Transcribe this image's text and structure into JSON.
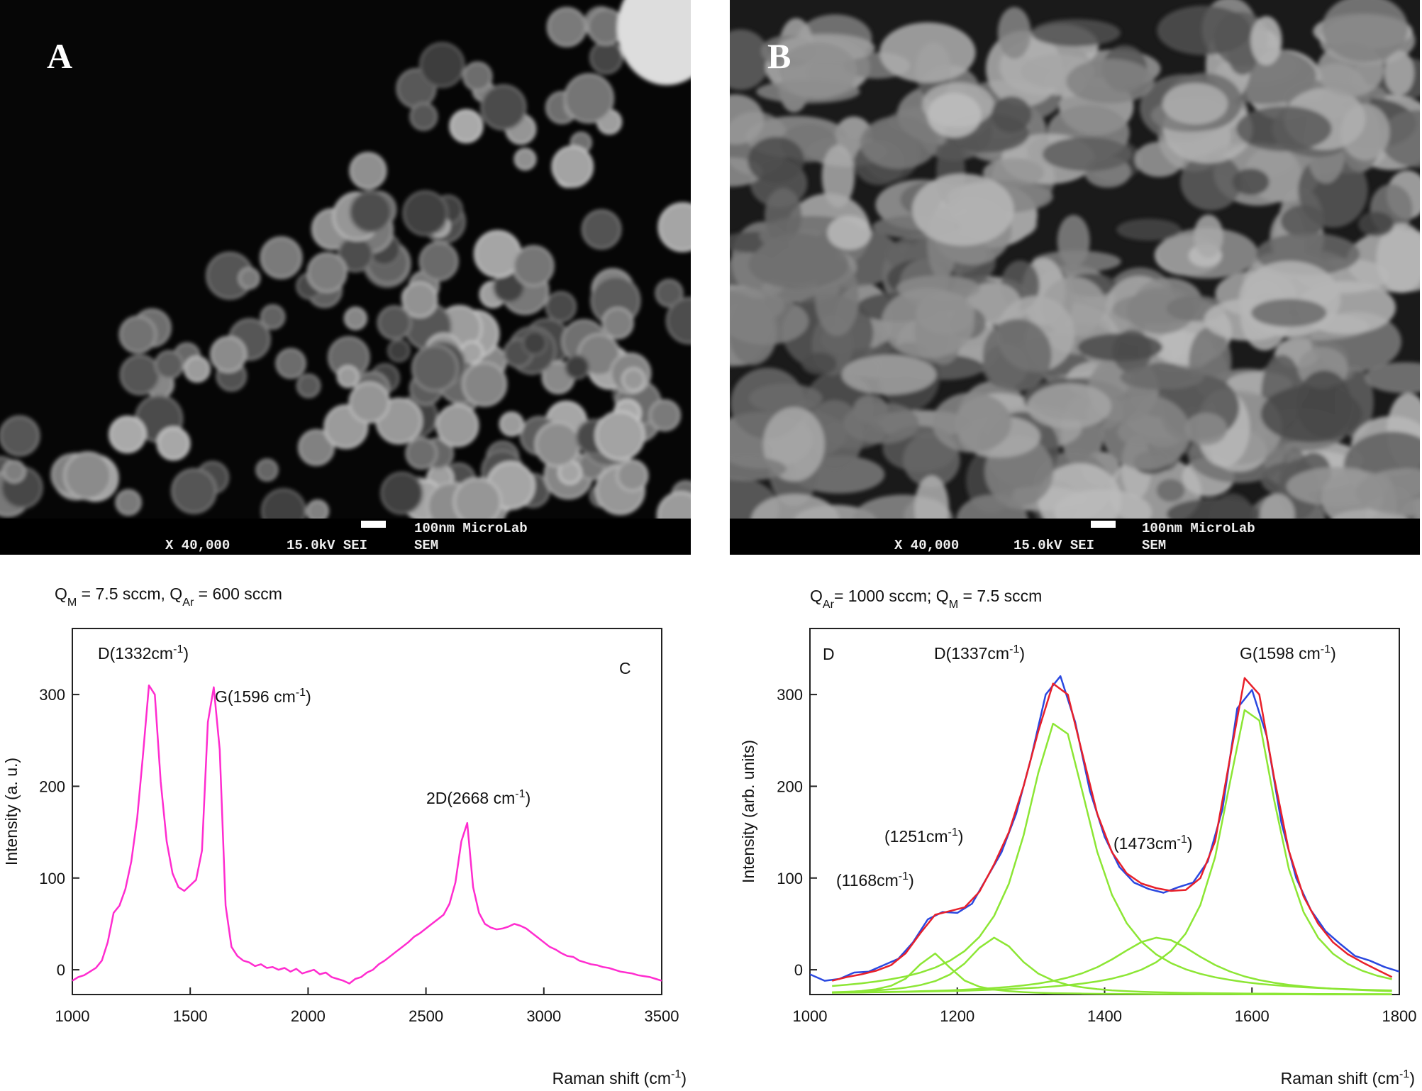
{
  "images": [
    {
      "label": "A",
      "magnification": "X 40,000",
      "voltage": "15.0kV SEI",
      "scale": "100nm MicroLab",
      "instrument": "SEM"
    },
    {
      "label": "B",
      "magnification": "X 40,000",
      "voltage": "15.0kV SEI",
      "scale": "100nm MicroLab",
      "instrument": "SEM"
    }
  ],
  "chart_data": [
    {
      "type": "line",
      "panel": "C",
      "title": [
        {
          "text": "Q"
        },
        {
          "text": "M",
          "sub": true
        },
        {
          "text": " = 7.5 sccm, Q"
        },
        {
          "text": "Ar",
          "sub": true
        },
        {
          "text": " = 600 sccm"
        }
      ],
      "ylabel": [
        {
          "text": "Intensity (a. u.)"
        }
      ],
      "xlabel": [
        {
          "text": "Raman shift (cm"
        },
        {
          "text": "-1",
          "sup": true
        },
        {
          "text": ")"
        }
      ],
      "annotations": [
        [
          {
            "text": "D(1332cm"
          },
          {
            "text": "-1",
            "sup": true
          },
          {
            "text": ")"
          }
        ],
        [
          {
            "text": "G(1596 cm"
          },
          {
            "text": "-1",
            "sup": true
          },
          {
            "text": ")"
          }
        ],
        [
          {
            "text": "2D(2668 cm"
          },
          {
            "text": "-1",
            "sup": true
          },
          {
            "text": ")"
          }
        ]
      ],
      "xlim": [
        1000,
        3500
      ],
      "ylim": [
        -27,
        372
      ],
      "xticks": [
        1000,
        1500,
        2000,
        2500,
        3000,
        3500
      ],
      "yticks": [
        0,
        100,
        200,
        300
      ],
      "series": [
        {
          "color": "#ff2ccf",
          "x": [
            1000,
            1025,
            1050,
            1075,
            1100,
            1125,
            1150,
            1175,
            1200,
            1225,
            1250,
            1275,
            1300,
            1325,
            1350,
            1375,
            1400,
            1425,
            1450,
            1475,
            1500,
            1525,
            1550,
            1575,
            1600,
            1625,
            1650,
            1675,
            1700,
            1725,
            1750,
            1775,
            1800,
            1825,
            1850,
            1875,
            1900,
            1925,
            1950,
            1975,
            2000,
            2025,
            2050,
            2075,
            2100,
            2125,
            2150,
            2175,
            2200,
            2225,
            2250,
            2275,
            2300,
            2325,
            2350,
            2375,
            2400,
            2425,
            2450,
            2475,
            2500,
            2525,
            2550,
            2575,
            2600,
            2625,
            2650,
            2675,
            2700,
            2725,
            2750,
            2775,
            2800,
            2825,
            2850,
            2875,
            2900,
            2925,
            2950,
            2975,
            3000,
            3025,
            3050,
            3075,
            3100,
            3125,
            3150,
            3175,
            3200,
            3225,
            3250,
            3275,
            3300,
            3325,
            3350,
            3375,
            3400,
            3425,
            3450,
            3475,
            3500
          ],
          "values": [
            -12,
            -8,
            -6,
            -2,
            2,
            10,
            30,
            62,
            70,
            88,
            118,
            165,
            235,
            310,
            300,
            205,
            140,
            105,
            90,
            86,
            92,
            98,
            130,
            270,
            308,
            240,
            70,
            25,
            15,
            10,
            8,
            4,
            6,
            2,
            3,
            0,
            2,
            -2,
            1,
            -4,
            -2,
            0,
            -5,
            -3,
            -8,
            -10,
            -12,
            -15,
            -10,
            -8,
            -3,
            0,
            6,
            10,
            15,
            20,
            25,
            30,
            36,
            40,
            45,
            50,
            55,
            60,
            72,
            95,
            140,
            160,
            90,
            62,
            50,
            46,
            44,
            45,
            47,
            50,
            48,
            45,
            40,
            35,
            30,
            25,
            22,
            18,
            15,
            14,
            10,
            8,
            6,
            5,
            3,
            2,
            0,
            -2,
            -3,
            -4,
            -6,
            -7,
            -8,
            -10,
            -12
          ]
        }
      ]
    },
    {
      "type": "line",
      "panel": "D",
      "title": [
        {
          "text": "Q"
        },
        {
          "text": "Ar",
          "sub": true
        },
        {
          "text": "= 1000 sccm; Q"
        },
        {
          "text": "M",
          "sub": true
        },
        {
          "text": " = 7.5 sccm"
        }
      ],
      "ylabel": [
        {
          "text": "Intensity (arb. units)"
        }
      ],
      "xlabel": [
        {
          "text": "Raman shift (cm"
        },
        {
          "text": "-1",
          "sup": true
        },
        {
          "text": ")"
        }
      ],
      "annotations": [
        [
          {
            "text": "D(1337cm"
          },
          {
            "text": "-1",
            "sup": true
          },
          {
            "text": ")"
          }
        ],
        [
          {
            "text": "G(1598 cm"
          },
          {
            "text": "-1",
            "sup": true
          },
          {
            "text": ")"
          }
        ],
        [
          {
            "text": "(1251cm"
          },
          {
            "text": "-1",
            "sup": true
          },
          {
            "text": ")"
          }
        ],
        [
          {
            "text": "(1473cm"
          },
          {
            "text": "-1",
            "sup": true
          },
          {
            "text": ")"
          }
        ],
        [
          {
            "text": "(1168cm"
          },
          {
            "text": "-1",
            "sup": true
          },
          {
            "text": ")"
          }
        ]
      ],
      "xlim": [
        1000,
        1800
      ],
      "ylim": [
        -27,
        372
      ],
      "xticks": [
        1000,
        1200,
        1400,
        1600,
        1800
      ],
      "yticks": [
        0,
        100,
        200,
        300
      ],
      "series": [
        {
          "color": "#8ce634",
          "x": [
            1030,
            1050,
            1070,
            1090,
            1110,
            1130,
            1150,
            1170,
            1190,
            1210,
            1230,
            1250,
            1270,
            1290,
            1310,
            1330,
            1350,
            1370,
            1390,
            1410,
            1430,
            1450,
            1470,
            1490,
            1510,
            1530,
            1550,
            1570,
            1590,
            1610,
            1630,
            1650,
            1670,
            1690,
            1710,
            1730,
            1750,
            1770,
            1790
          ],
          "values": [
            -25.0,
            -24.3,
            -23.1,
            -21.2,
            -17.5,
            -9.7,
            6.1,
            17.8,
            2.3,
            -11.8,
            -18.5,
            -21.7,
            -23.4,
            -24.4,
            -25.1,
            -25.5,
            -25.8,
            -26.0,
            -26.2,
            -26.3,
            -26.4,
            -26.5,
            -26.6,
            -26.6,
            -26.6,
            -26.7,
            -26.7,
            -26.7,
            -26.8,
            -26.8,
            -26.8,
            -26.8,
            -26.8,
            -26.9,
            -26.9,
            -26.9,
            -26.9,
            -26.9,
            -26.9
          ]
        },
        {
          "color": "#8ce634",
          "x": [
            1030,
            1050,
            1070,
            1090,
            1110,
            1130,
            1150,
            1170,
            1190,
            1210,
            1230,
            1250,
            1270,
            1290,
            1310,
            1330,
            1350,
            1370,
            1390,
            1410,
            1430,
            1450,
            1470,
            1490,
            1510,
            1530,
            1550,
            1570,
            1590,
            1610,
            1630,
            1650,
            1670,
            1690,
            1710,
            1730,
            1750,
            1770,
            1790
          ],
          "values": [
            -24.5,
            -24.0,
            -23.4,
            -22.5,
            -21.3,
            -19.5,
            -16.7,
            -12.4,
            -5.2,
            6.9,
            23.9,
            35.0,
            25.6,
            8.4,
            -4.2,
            -11.8,
            -16.4,
            -19.2,
            -21.1,
            -22.4,
            -23.3,
            -24.0,
            -24.5,
            -24.9,
            -25.2,
            -25.4,
            -25.6,
            -25.8,
            -25.9,
            -26.0,
            -26.1,
            -26.2,
            -26.3,
            -26.4,
            -26.4,
            -26.5,
            -26.5,
            -26.5,
            -26.6
          ]
        },
        {
          "color": "#8ce634",
          "x": [
            1030,
            1050,
            1070,
            1090,
            1110,
            1130,
            1150,
            1170,
            1190,
            1210,
            1230,
            1250,
            1270,
            1290,
            1310,
            1330,
            1350,
            1370,
            1390,
            1410,
            1430,
            1450,
            1470,
            1490,
            1510,
            1530,
            1550,
            1570,
            1590,
            1610,
            1630,
            1650,
            1670,
            1690,
            1710,
            1730,
            1750,
            1770,
            1790
          ],
          "values": [
            -17.7,
            -16.4,
            -14.8,
            -12.8,
            -10.3,
            -7.3,
            -3.1,
            2.4,
            9.9,
            20.4,
            35.8,
            58.7,
            93.8,
            146.4,
            214.7,
            268.3,
            257.1,
            193.6,
            128.5,
            81.6,
            50.7,
            30.5,
            16.8,
            7.3,
            0.5,
            -4.4,
            -8.2,
            -11.1,
            -13.5,
            -15.3,
            -16.8,
            -18.0,
            -19.0,
            -19.9,
            -20.6,
            -21.2,
            -21.8,
            -22.2,
            -22.6
          ]
        },
        {
          "color": "#8ce634",
          "x": [
            1030,
            1050,
            1070,
            1090,
            1110,
            1130,
            1150,
            1170,
            1190,
            1210,
            1230,
            1250,
            1270,
            1290,
            1310,
            1330,
            1350,
            1370,
            1390,
            1410,
            1430,
            1450,
            1470,
            1490,
            1510,
            1530,
            1550,
            1570,
            1590,
            1610,
            1630,
            1650,
            1670,
            1690,
            1710,
            1730,
            1750,
            1770,
            1790
          ],
          "values": [
            -25.0,
            -24.9,
            -24.7,
            -24.4,
            -24.1,
            -23.8,
            -23.4,
            -22.9,
            -22.4,
            -21.7,
            -20.9,
            -19.9,
            -18.7,
            -17.0,
            -15.0,
            -12.2,
            -8.5,
            -3.7,
            2.8,
            11.3,
            21.1,
            30.2,
            34.9,
            32.3,
            24.1,
            14.1,
            5.2,
            -1.9,
            -7.3,
            -11.2,
            -14.2,
            -16.5,
            -18.2,
            -19.6,
            -20.7,
            -21.5,
            -22.2,
            -22.8,
            -23.3
          ]
        },
        {
          "color": "#8ce634",
          "x": [
            1030,
            1050,
            1070,
            1090,
            1110,
            1130,
            1150,
            1170,
            1190,
            1210,
            1230,
            1250,
            1270,
            1290,
            1310,
            1330,
            1350,
            1370,
            1390,
            1410,
            1430,
            1450,
            1470,
            1490,
            1510,
            1530,
            1550,
            1570,
            1590,
            1610,
            1630,
            1650,
            1670,
            1690,
            1710,
            1730,
            1750,
            1770,
            1790
          ],
          "values": [
            -25.0,
            -24.9,
            -24.7,
            -24.5,
            -24.3,
            -24.1,
            -23.8,
            -23.5,
            -23.2,
            -22.8,
            -22.3,
            -21.7,
            -21.1,
            -20.3,
            -19.4,
            -18.2,
            -16.8,
            -15.0,
            -12.7,
            -9.7,
            -5.5,
            0.1,
            8.2,
            20.3,
            39.4,
            70.6,
            122.7,
            203.7,
            283.1,
            271.8,
            185.5,
            110.0,
            62.9,
            34.8,
            17.5,
            6.3,
            -1.2,
            -6.5,
            -10.3
          ]
        },
        {
          "color": "#2a48e0",
          "x": [
            1000,
            1020,
            1040,
            1060,
            1080,
            1100,
            1120,
            1140,
            1160,
            1180,
            1200,
            1220,
            1240,
            1260,
            1280,
            1300,
            1320,
            1340,
            1360,
            1380,
            1400,
            1420,
            1440,
            1460,
            1480,
            1500,
            1520,
            1540,
            1560,
            1580,
            1600,
            1620,
            1640,
            1660,
            1680,
            1700,
            1720,
            1740,
            1760,
            1780,
            1800
          ],
          "values": [
            -5,
            -12,
            -10,
            -3,
            -2,
            5,
            12,
            30,
            55,
            63,
            62,
            72,
            100,
            128,
            170,
            230,
            300,
            320,
            270,
            195,
            145,
            112,
            95,
            88,
            84,
            90,
            95,
            118,
            175,
            285,
            305,
            255,
            160,
            100,
            65,
            42,
            28,
            15,
            10,
            3,
            -2
          ]
        },
        {
          "color": "#e8202a",
          "x": [
            1030,
            1050,
            1070,
            1090,
            1110,
            1130,
            1150,
            1170,
            1190,
            1210,
            1230,
            1250,
            1270,
            1290,
            1310,
            1330,
            1350,
            1370,
            1390,
            1410,
            1430,
            1450,
            1470,
            1490,
            1510,
            1530,
            1550,
            1570,
            1590,
            1610,
            1630,
            1650,
            1670,
            1690,
            1710,
            1730,
            1750,
            1770,
            1790
          ],
          "values": [
            -12,
            -8,
            -5,
            -1,
            5,
            18,
            40,
            60,
            64,
            68,
            85,
            115,
            150,
            200,
            260,
            312,
            300,
            235,
            170,
            128,
            105,
            94,
            89,
            86,
            87,
            100,
            140,
            230,
            318,
            300,
            210,
            130,
            80,
            50,
            30,
            17,
            8,
            0,
            -8
          ]
        }
      ]
    }
  ]
}
